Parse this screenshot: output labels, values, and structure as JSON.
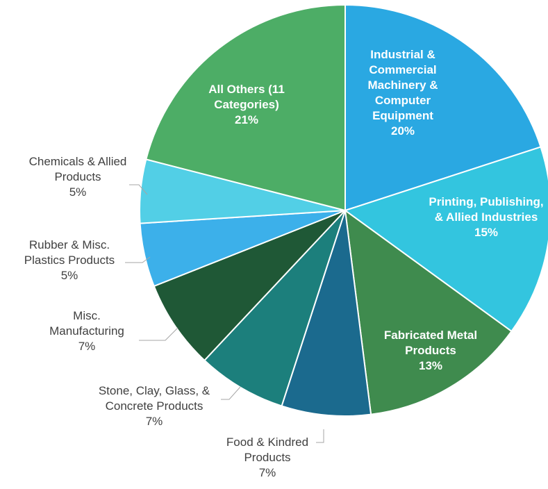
{
  "chart_data": {
    "type": "pie",
    "categories": [
      "Industrial & Commercial Machinery & Computer Equipment",
      "Printing, Publishing, & Allied Industries",
      "Fabricated Metal Products",
      "Food & Kindred Products",
      "Stone, Clay, Glass, & Concrete Products",
      "Misc. Manufacturing",
      "Rubber & Misc. Plastics Products",
      "Chemicals & Allied Products",
      "All Others (11 Categories)"
    ],
    "values": [
      20,
      15,
      13,
      7,
      7,
      7,
      5,
      5,
      21
    ],
    "value_labels": [
      "20%",
      "15%",
      "13%",
      "7%",
      "7%",
      "7%",
      "5%",
      "5%",
      "21%"
    ],
    "colors": [
      "#2aa8e2",
      "#33c5df",
      "#3f8b4e",
      "#1b6a8e",
      "#1c7f7c",
      "#1f5836",
      "#3cb0ea",
      "#52cfe6",
      "#4dad66"
    ]
  }
}
